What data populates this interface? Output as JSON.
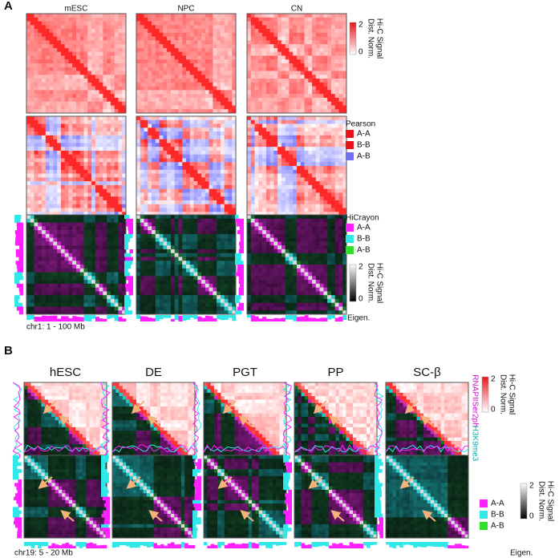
{
  "panel_a": {
    "label": "A",
    "columns": [
      "mESC",
      "NPC",
      "CN"
    ],
    "hic_colorbar": {
      "ticks": [
        "2",
        "0"
      ],
      "label": [
        "Dist. Norm.",
        "Hi-C Signal"
      ]
    },
    "pearson": {
      "title": "Pearson",
      "legend": [
        {
          "label": "A-A",
          "color": "#e8141c"
        },
        {
          "label": "B-B",
          "color": "#e8141c"
        },
        {
          "label": "A-B",
          "color": "#7070f0"
        }
      ]
    },
    "hicrayon": {
      "title": "HiCrayon",
      "legend": [
        {
          "label": "A-A",
          "color": "#ff20ff"
        },
        {
          "label": "B-B",
          "color": "#30e8e8"
        },
        {
          "label": "A-B",
          "color": "#30e030"
        }
      ]
    },
    "gray_colorbar": {
      "ticks": [
        "2",
        "0"
      ],
      "label": [
        "Dist. Norm.",
        "Hi-C Signal"
      ]
    },
    "eigen": "Eigen.",
    "region": "chr1: 1 - 100 Mb"
  },
  "panel_b": {
    "label": "B",
    "columns": [
      "hESC",
      "DE",
      "PGT",
      "PP",
      "SC-β"
    ],
    "track_labels": [
      "RNAPIISer2ph",
      "H3K9me3"
    ],
    "hic_colorbar": {
      "ticks": [
        "2",
        "0"
      ],
      "label": [
        "Dist. Norm.",
        "Hi-C Signal"
      ]
    },
    "legend": [
      {
        "label": "A-A",
        "color": "#ff20ff"
      },
      {
        "label": "B-B",
        "color": "#30e8e8"
      },
      {
        "label": "A-B",
        "color": "#30e030"
      }
    ],
    "gray_colorbar": {
      "ticks": [
        "2",
        "0"
      ],
      "label": [
        "Dist. Norm.",
        "Hi-C Signal"
      ]
    },
    "eigen": "Eigen.",
    "region": "chr19: 5 - 20 Mb"
  }
}
